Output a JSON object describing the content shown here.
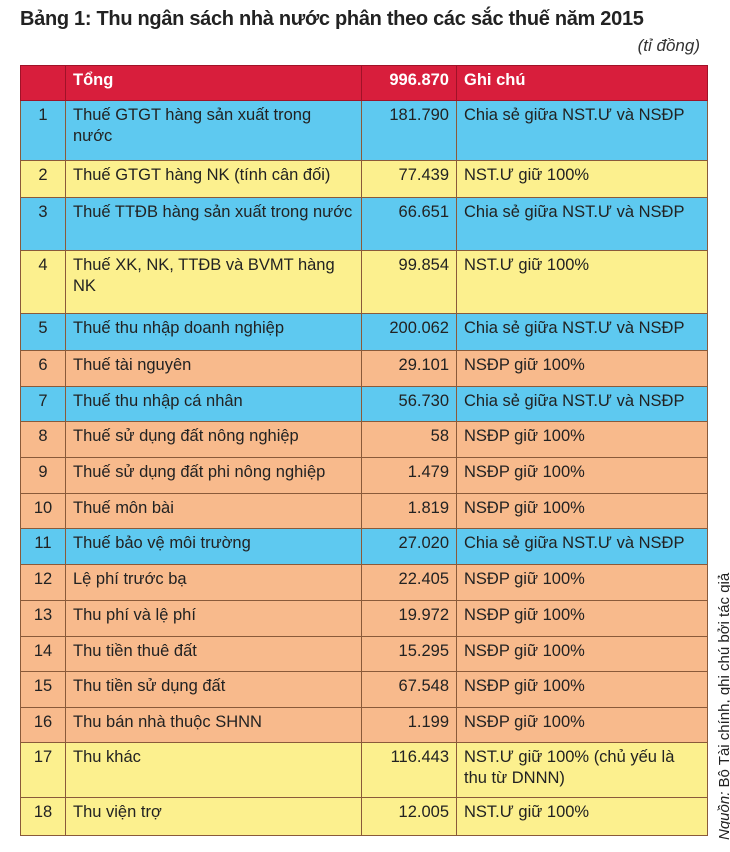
{
  "title": "Bảng 1: Thu ngân sách nhà nước phân theo các sắc thuế năm 2015",
  "unit": "(tỉ đồng)",
  "colors": {
    "header": "#d81e3c",
    "shared": "#5ec9f0",
    "central": "#fcf08e",
    "local": "#f8ba8c"
  },
  "header": {
    "num": "",
    "name": "Tổng",
    "value": "996.870",
    "note": "Ghi chú"
  },
  "rows": [
    {
      "num": "1",
      "name": "Thuế GTGT hàng sản xuất trong nước",
      "value": "181.790",
      "note": "Chia sẻ giữa NST.Ư và NSĐP",
      "color": "blue"
    },
    {
      "num": "2",
      "name": "Thuế GTGT hàng NK (tính cân đối)",
      "value": "77.439",
      "note": "NST.Ư giữ 100%",
      "color": "yellow"
    },
    {
      "num": "3",
      "name": "Thuế TTĐB hàng sản xuất trong nước",
      "value": "66.651",
      "note": "Chia sẻ giữa NST.Ư và NSĐP",
      "color": "blue"
    },
    {
      "num": "4",
      "name": "Thuế XK, NK, TTĐB và BVMT hàng NK",
      "value": "99.854",
      "note": "NST.Ư giữ 100%",
      "color": "yellow"
    },
    {
      "num": "5",
      "name": "Thuế thu nhập doanh nghiệp",
      "value": "200.062",
      "note": "Chia sẻ giữa NST.Ư và NSĐP",
      "color": "blue"
    },
    {
      "num": "6",
      "name": "Thuế tài nguyên",
      "value": "29.101",
      "note": "NSĐP giữ 100%",
      "color": "orange"
    },
    {
      "num": "7",
      "name": "Thuế thu nhập cá nhân",
      "value": "56.730",
      "note": "Chia sẻ giữa NST.Ư và NSĐP",
      "color": "blue"
    },
    {
      "num": "8",
      "name": "Thuế sử dụng đất nông nghiệp",
      "value": "58",
      "note": "NSĐP giữ 100%",
      "color": "orange"
    },
    {
      "num": "9",
      "name": "Thuế sử dụng đất phi nông nghiệp",
      "value": "1.479",
      "note": "NSĐP giữ 100%",
      "color": "orange"
    },
    {
      "num": "10",
      "name": "Thuế môn bài",
      "value": "1.819",
      "note": "NSĐP giữ 100%",
      "color": "orange"
    },
    {
      "num": "11",
      "name": "Thuế bảo vệ môi trường",
      "value": "27.020",
      "note": "Chia sẻ giữa NST.Ư và NSĐP",
      "color": "blue"
    },
    {
      "num": "12",
      "name": "Lệ phí trước bạ",
      "value": "22.405",
      "note": "NSĐP giữ 100%",
      "color": "orange"
    },
    {
      "num": "13",
      "name": "Thu phí và lệ phí",
      "value": "19.972",
      "note": "NSĐP giữ 100%",
      "color": "orange"
    },
    {
      "num": "14",
      "name": "Thu tiền thuê đất",
      "value": "15.295",
      "note": "NSĐP giữ 100%",
      "color": "orange"
    },
    {
      "num": "15",
      "name": "Thu tiền sử dụng đất",
      "value": "67.548",
      "note": "NSĐP giữ 100%",
      "color": "orange"
    },
    {
      "num": "16",
      "name": "Thu bán nhà thuộc SHNN",
      "value": "1.199",
      "note": "NSĐP giữ 100%",
      "color": "orange"
    },
    {
      "num": "17",
      "name": "Thu khác",
      "value": "116.443",
      "note": "NST.Ư giữ 100% (chủ yếu là thu từ DNNN)",
      "color": "yellow"
    },
    {
      "num": "18",
      "name": "Thu viện trợ",
      "value": "12.005",
      "note": "NST.Ư giữ 100%",
      "color": "yellow"
    }
  ],
  "source": {
    "label": "Nguồn:",
    "text": " Bộ Tài chính, ghi chú bởi tác giả"
  }
}
